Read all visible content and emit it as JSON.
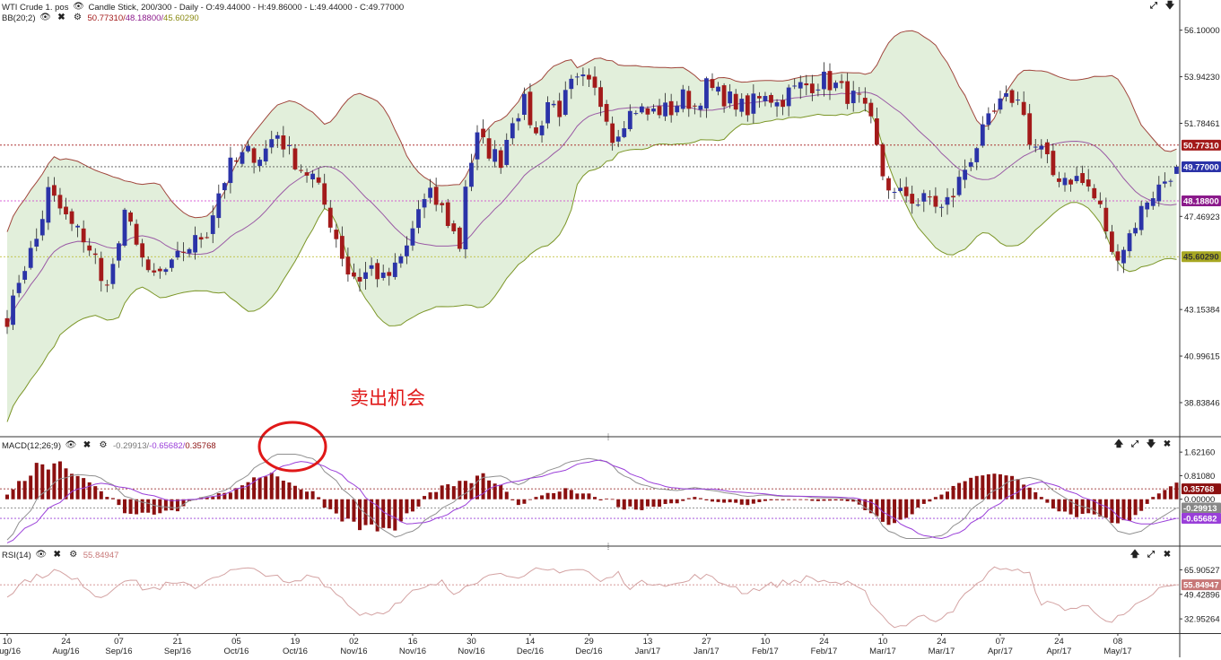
{
  "header": {
    "symbol": "WTI Crude 1. pos",
    "chart_info": "Candle Stick, 200/300 - Daily - O:49.44000 - H:49.86000 - L:49.44000 - C:49.77000",
    "bb_label": "BB(20;2)",
    "bb_values": {
      "upper": "50.77310",
      "mid": "48.18800",
      "lower": "45.60290"
    }
  },
  "annotation": {
    "text": "卖出机会"
  },
  "macd_header": {
    "label": "MACD(12;26;9)",
    "values": {
      "macd": "-0.29913",
      "signal": "-0.65682",
      "hist": "0.35768"
    }
  },
  "rsi_header": {
    "label": "RSI(14)",
    "value": "55.84947"
  },
  "colors": {
    "up": "#2b33a8",
    "down": "#a31a1a",
    "bb_fill": "#e2efdb",
    "bb_upper": "#a0463c",
    "bb_lower": "#7c9628",
    "bb_mid": "#9a5aa5",
    "macd_line": "#909090",
    "signal_line": "#9a3fd9",
    "hist": "#8b1010",
    "rsi": "#d4a3a3",
    "circle": "#e01818",
    "annotation": "#e01818"
  },
  "chart_data": [
    {
      "type": "candlestick",
      "title": "WTI Crude 1. pos",
      "ylim": [
        37.3,
        57.0
      ],
      "yticks": [
        "56.10000",
        "53.94230",
        "51.78461",
        "47.46923",
        "43.15384",
        "40.99615",
        "38.83846"
      ],
      "price_labels": [
        {
          "value": 50.7731,
          "text": "50.77310",
          "color": "#a31a1a",
          "line_color": "#a31a1a"
        },
        {
          "value": 49.77,
          "text": "49.77000",
          "color": "#2b33a8",
          "line_color": "#555555"
        },
        {
          "value": 48.188,
          "text": "48.18800",
          "color": "#8b1a8b",
          "line_color": "#cc33cc"
        },
        {
          "value": 45.6029,
          "text": "45.60290",
          "color": "#a7a722",
          "line_color": "#b7b722",
          "text_color": "#333333"
        }
      ],
      "x_ticks": [
        {
          "day": "10",
          "month": "Aug/16",
          "index": 0
        },
        {
          "day": "24",
          "month": "Aug/16",
          "index": 10
        },
        {
          "day": "07",
          "month": "Sep/16",
          "index": 19
        },
        {
          "day": "21",
          "month": "Sep/16",
          "index": 29
        },
        {
          "day": "05",
          "month": "Oct/16",
          "index": 39
        },
        {
          "day": "19",
          "month": "Oct/16",
          "index": 49
        },
        {
          "day": "02",
          "month": "Nov/16",
          "index": 59
        },
        {
          "day": "16",
          "month": "Nov/16",
          "index": 69
        },
        {
          "day": "30",
          "month": "Nov/16",
          "index": 79
        },
        {
          "day": "14",
          "month": "Dec/16",
          "index": 89
        },
        {
          "day": "29",
          "month": "Dec/16",
          "index": 99
        },
        {
          "day": "13",
          "month": "Jan/17",
          "index": 109
        },
        {
          "day": "27",
          "month": "Jan/17",
          "index": 119
        },
        {
          "day": "10",
          "month": "Feb/17",
          "index": 129
        },
        {
          "day": "24",
          "month": "Feb/17",
          "index": 139
        },
        {
          "day": "10",
          "month": "Mar/17",
          "index": 149
        },
        {
          "day": "24",
          "month": "Mar/17",
          "index": 159
        },
        {
          "day": "07",
          "month": "Apr/17",
          "index": 169
        },
        {
          "day": "24",
          "month": "Apr/17",
          "index": 179
        },
        {
          "day": "08",
          "month": "May/17",
          "index": 189
        }
      ],
      "close_anchors": [
        [
          0,
          42.8
        ],
        [
          3,
          45.2
        ],
        [
          5,
          46.4
        ],
        [
          7,
          48.6
        ],
        [
          9,
          47.8
        ],
        [
          11,
          47.0
        ],
        [
          13,
          46.5
        ],
        [
          15,
          45.5
        ],
        [
          16,
          44.3
        ],
        [
          18,
          45.1
        ],
        [
          20,
          47.4
        ],
        [
          22,
          46.5
        ],
        [
          24,
          44.6
        ],
        [
          26,
          44.8
        ],
        [
          28,
          45.1
        ],
        [
          30,
          45.9
        ],
        [
          32,
          46.3
        ],
        [
          34,
          46.8
        ],
        [
          36,
          48.6
        ],
        [
          38,
          49.8
        ],
        [
          41,
          50.4
        ],
        [
          43,
          50.3
        ],
        [
          46,
          51.3
        ],
        [
          48,
          50.4
        ],
        [
          50,
          49.7
        ],
        [
          52,
          49.3
        ],
        [
          54,
          48.0
        ],
        [
          56,
          46.5
        ],
        [
          58,
          44.9
        ],
        [
          60,
          44.6
        ],
        [
          62,
          45.1
        ],
        [
          64,
          44.5
        ],
        [
          66,
          45.0
        ],
        [
          68,
          46.0
        ],
        [
          70,
          47.8
        ],
        [
          72,
          48.4
        ],
        [
          74,
          47.8
        ],
        [
          76,
          46.7
        ],
        [
          77,
          46.1
        ],
        [
          78,
          49.0
        ],
        [
          80,
          51.1
        ],
        [
          82,
          50.5
        ],
        [
          84,
          50.1
        ],
        [
          86,
          52.1
        ],
        [
          88,
          52.7
        ],
        [
          90,
          51.2
        ],
        [
          92,
          52.8
        ],
        [
          94,
          52.4
        ],
        [
          96,
          53.5
        ],
        [
          98,
          53.7
        ],
        [
          100,
          53.2
        ],
        [
          102,
          52.3
        ],
        [
          103,
          51.1
        ],
        [
          105,
          52.0
        ],
        [
          107,
          52.5
        ],
        [
          109,
          52.2
        ],
        [
          111,
          52.4
        ],
        [
          113,
          52.4
        ],
        [
          115,
          53.0
        ],
        [
          117,
          52.6
        ],
        [
          119,
          53.5
        ],
        [
          121,
          53.1
        ],
        [
          123,
          52.9
        ],
        [
          125,
          52.5
        ],
        [
          126,
          52.1
        ],
        [
          127,
          53.0
        ],
        [
          129,
          53.3
        ],
        [
          131,
          52.7
        ],
        [
          133,
          53.2
        ],
        [
          135,
          53.5
        ],
        [
          137,
          53.6
        ],
        [
          139,
          53.8
        ],
        [
          141,
          53.5
        ],
        [
          143,
          53.1
        ],
        [
          145,
          52.8
        ],
        [
          147,
          51.7
        ],
        [
          149,
          49.4
        ],
        [
          151,
          48.4
        ],
        [
          153,
          48.5
        ],
        [
          155,
          48.1
        ],
        [
          157,
          48.3
        ],
        [
          159,
          47.8
        ],
        [
          161,
          48.5
        ],
        [
          163,
          49.7
        ],
        [
          165,
          50.8
        ],
        [
          167,
          51.8
        ],
        [
          169,
          52.6
        ],
        [
          171,
          53.0
        ],
        [
          173,
          52.5
        ],
        [
          174,
          50.8
        ],
        [
          176,
          50.5
        ],
        [
          178,
          49.4
        ],
        [
          180,
          49.3
        ],
        [
          182,
          49.2
        ],
        [
          184,
          48.8
        ],
        [
          186,
          47.8
        ],
        [
          187,
          46.9
        ],
        [
          188,
          45.6
        ],
        [
          190,
          46.1
        ],
        [
          192,
          47.2
        ],
        [
          194,
          48.3
        ],
        [
          196,
          48.8
        ],
        [
          198,
          49.5
        ],
        [
          199,
          49.77
        ]
      ]
    },
    {
      "type": "line",
      "title": "MACD(12;26;9)",
      "ylim": [
        -1.55,
        1.75
      ],
      "yticks": [
        "1.62160",
        "0.81080",
        "0.00000"
      ],
      "value_labels": [
        {
          "value": 0.35768,
          "text": "0.35768",
          "color": "#8b1010"
        },
        {
          "value": -0.29913,
          "text": "-0.29913",
          "color": "#888888"
        },
        {
          "value": -0.65682,
          "text": "-0.65682",
          "color": "#9a3fd9"
        }
      ],
      "macd_anchors": [
        [
          0,
          -1.4
        ],
        [
          3,
          -0.6
        ],
        [
          6,
          0.2
        ],
        [
          9,
          0.7
        ],
        [
          12,
          0.85
        ],
        [
          15,
          0.8
        ],
        [
          18,
          0.5
        ],
        [
          20,
          0.1
        ],
        [
          23,
          -0.1
        ],
        [
          26,
          -0.25
        ],
        [
          29,
          -0.3
        ],
        [
          31,
          -0.05
        ],
        [
          34,
          0.1
        ],
        [
          37,
          0.3
        ],
        [
          40,
          0.7
        ],
        [
          43,
          1.2
        ],
        [
          46,
          1.55
        ],
        [
          49,
          1.55
        ],
        [
          52,
          1.4
        ],
        [
          55,
          0.8
        ],
        [
          58,
          0.2
        ],
        [
          61,
          -0.5
        ],
        [
          64,
          -1.05
        ],
        [
          66,
          -1.3
        ],
        [
          69,
          -1.1
        ],
        [
          72,
          -0.6
        ],
        [
          75,
          -0.2
        ],
        [
          78,
          0.2
        ],
        [
          81,
          0.75
        ],
        [
          84,
          0.8
        ],
        [
          87,
          0.5
        ],
        [
          90,
          0.8
        ],
        [
          93,
          1.05
        ],
        [
          96,
          1.3
        ],
        [
          99,
          1.4
        ],
        [
          102,
          1.3
        ],
        [
          105,
          0.8
        ],
        [
          108,
          0.5
        ],
        [
          111,
          0.35
        ],
        [
          114,
          0.3
        ],
        [
          117,
          0.4
        ],
        [
          120,
          0.3
        ],
        [
          123,
          0.2
        ],
        [
          126,
          0.1
        ],
        [
          129,
          0.15
        ],
        [
          132,
          0.1
        ],
        [
          135,
          0.1
        ],
        [
          138,
          0.05
        ],
        [
          141,
          0.05
        ],
        [
          144,
          0.0
        ],
        [
          147,
          -0.4
        ],
        [
          150,
          -1.1
        ],
        [
          153,
          -1.35
        ],
        [
          156,
          -1.35
        ],
        [
          159,
          -1.25
        ],
        [
          162,
          -0.8
        ],
        [
          165,
          -0.2
        ],
        [
          168,
          0.3
        ],
        [
          171,
          0.65
        ],
        [
          174,
          0.75
        ],
        [
          176,
          0.65
        ],
        [
          178,
          0.3
        ],
        [
          180,
          0.05
        ],
        [
          182,
          -0.2
        ],
        [
          184,
          -0.3
        ],
        [
          187,
          -0.65
        ],
        [
          189,
          -1.1
        ],
        [
          191,
          -1.2
        ],
        [
          193,
          -1.1
        ],
        [
          195,
          -0.8
        ],
        [
          197,
          -0.55
        ],
        [
          199,
          -0.29913
        ]
      ],
      "signal_anchors": [
        [
          0,
          -1.5
        ],
        [
          4,
          -0.9
        ],
        [
          8,
          -0.2
        ],
        [
          12,
          0.35
        ],
        [
          16,
          0.55
        ],
        [
          20,
          0.4
        ],
        [
          24,
          0.15
        ],
        [
          28,
          -0.05
        ],
        [
          32,
          0.0
        ],
        [
          36,
          0.12
        ],
        [
          40,
          0.4
        ],
        [
          44,
          0.8
        ],
        [
          47,
          1.15
        ],
        [
          50,
          1.3
        ],
        [
          53,
          1.2
        ],
        [
          56,
          0.95
        ],
        [
          59,
          0.5
        ],
        [
          62,
          -0.1
        ],
        [
          65,
          -0.55
        ],
        [
          68,
          -0.85
        ],
        [
          71,
          -0.8
        ],
        [
          74,
          -0.6
        ],
        [
          77,
          -0.3
        ],
        [
          80,
          0.1
        ],
        [
          83,
          0.45
        ],
        [
          86,
          0.6
        ],
        [
          90,
          0.75
        ],
        [
          94,
          0.95
        ],
        [
          98,
          1.25
        ],
        [
          101,
          1.35
        ],
        [
          104,
          1.1
        ],
        [
          107,
          0.8
        ],
        [
          110,
          0.55
        ],
        [
          113,
          0.4
        ],
        [
          116,
          0.35
        ],
        [
          120,
          0.35
        ],
        [
          124,
          0.25
        ],
        [
          128,
          0.2
        ],
        [
          132,
          0.12
        ],
        [
          136,
          0.1
        ],
        [
          140,
          0.08
        ],
        [
          144,
          0.05
        ],
        [
          147,
          -0.1
        ],
        [
          150,
          -0.55
        ],
        [
          153,
          -0.95
        ],
        [
          156,
          -1.25
        ],
        [
          159,
          -1.35
        ],
        [
          162,
          -1.15
        ],
        [
          165,
          -0.7
        ],
        [
          168,
          -0.25
        ],
        [
          171,
          0.15
        ],
        [
          174,
          0.5
        ],
        [
          176,
          0.6
        ],
        [
          178,
          0.5
        ],
        [
          181,
          0.25
        ],
        [
          184,
          0.0
        ],
        [
          187,
          -0.25
        ],
        [
          190,
          -0.7
        ],
        [
          193,
          -0.85
        ],
        [
          195,
          -0.85
        ],
        [
          197,
          -0.75
        ],
        [
          199,
          -0.65682
        ]
      ]
    },
    {
      "type": "line",
      "title": "RSI(14)",
      "ylim": [
        24.0,
        74.0
      ],
      "yticks": [
        "65.90527",
        "49.42896",
        "32.95264"
      ],
      "value_labels": [
        {
          "value": 55.84947,
          "text": "55.84947",
          "color": "#c77777"
        }
      ],
      "rsi_anchors": [
        [
          0,
          50
        ],
        [
          4,
          60
        ],
        [
          8,
          65
        ],
        [
          12,
          58
        ],
        [
          16,
          48
        ],
        [
          20,
          60
        ],
        [
          24,
          53
        ],
        [
          28,
          56
        ],
        [
          32,
          55
        ],
        [
          36,
          63
        ],
        [
          40,
          66
        ],
        [
          44,
          64
        ],
        [
          48,
          56
        ],
        [
          52,
          62
        ],
        [
          56,
          52
        ],
        [
          58,
          42
        ],
        [
          60,
          37
        ],
        [
          63,
          37
        ],
        [
          66,
          42
        ],
        [
          70,
          52
        ],
        [
          74,
          57
        ],
        [
          76,
          50
        ],
        [
          78,
          57
        ],
        [
          81,
          60
        ],
        [
          84,
          66
        ],
        [
          87,
          58
        ],
        [
          90,
          65
        ],
        [
          94,
          66
        ],
        [
          98,
          66
        ],
        [
          101,
          58
        ],
        [
          104,
          63
        ],
        [
          106,
          55
        ],
        [
          110,
          58
        ],
        [
          114,
          56
        ],
        [
          118,
          62
        ],
        [
          122,
          57
        ],
        [
          126,
          51
        ],
        [
          128,
          54
        ],
        [
          132,
          57
        ],
        [
          136,
          60
        ],
        [
          140,
          58
        ],
        [
          143,
          56
        ],
        [
          146,
          50
        ],
        [
          148,
          40
        ],
        [
          150,
          30
        ],
        [
          152,
          28
        ],
        [
          155,
          34
        ],
        [
          158,
          33
        ],
        [
          161,
          40
        ],
        [
          164,
          52
        ],
        [
          167,
          64
        ],
        [
          169,
          68
        ],
        [
          171,
          66
        ],
        [
          174,
          62
        ],
        [
          176,
          44
        ],
        [
          178,
          42
        ],
        [
          181,
          40
        ],
        [
          184,
          41
        ],
        [
          186,
          36
        ],
        [
          188,
          31
        ],
        [
          190,
          35
        ],
        [
          193,
          43
        ],
        [
          196,
          53
        ],
        [
          198,
          54
        ],
        [
          199,
          55.85
        ]
      ]
    }
  ]
}
